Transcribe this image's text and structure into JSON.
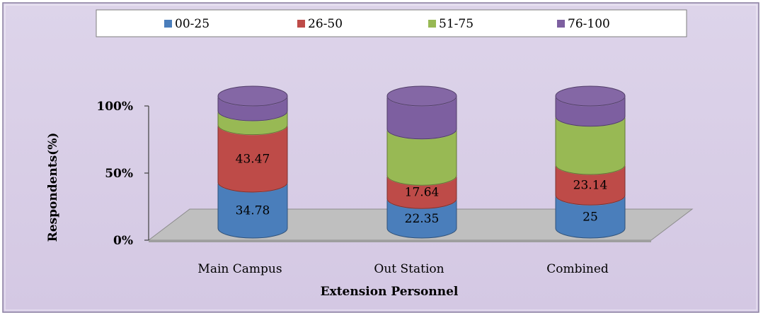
{
  "chart_data": {
    "type": "bar",
    "stacked": "percent",
    "style": "3d-cylinder",
    "title": "",
    "xlabel": "Extension Personnel",
    "ylabel": "Respondents(%)",
    "ylim": [
      0,
      100
    ],
    "yticks": [
      "0%",
      "50%",
      "100%"
    ],
    "grid": false,
    "legend_position": "top",
    "categories": [
      "Main Campus",
      "Out Station",
      "Combined"
    ],
    "series": [
      {
        "name": "00-25",
        "color": "#4a7ebb",
        "values": [
          34.78,
          22.35,
          25
        ],
        "labels": [
          "34.78",
          "22.35",
          "25"
        ]
      },
      {
        "name": "26-50",
        "color": "#be4b48",
        "values": [
          43.47,
          17.64,
          23.14
        ],
        "labels": [
          "43.47",
          "17.64",
          "23.14"
        ]
      },
      {
        "name": "51-75",
        "color": "#98b954",
        "values": [
          10.5,
          35.0,
          36.5
        ],
        "labels": [
          "",
          "",
          ""
        ]
      },
      {
        "name": "76-100",
        "color": "#7d5fa0",
        "values": [
          11.25,
          25.0,
          15.36
        ],
        "labels": [
          "",
          "",
          ""
        ]
      }
    ]
  }
}
